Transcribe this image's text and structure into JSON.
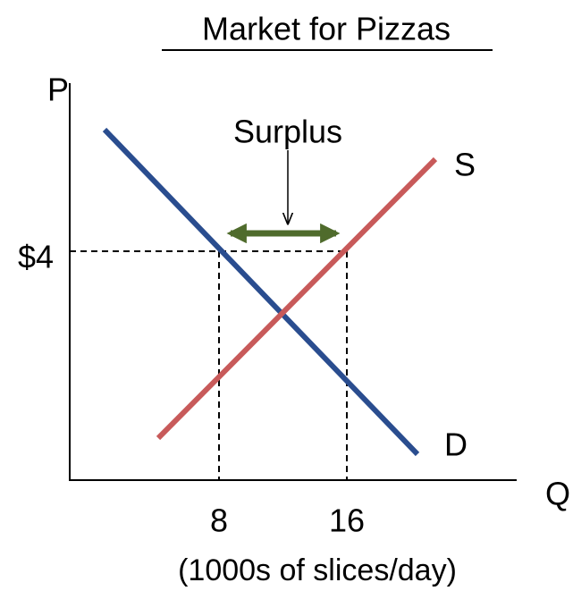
{
  "title": "Market for Pizzas",
  "y_axis_label": "P",
  "x_axis_label": "Q",
  "supply_label": "S",
  "demand_label": "D",
  "annotation": "Surplus",
  "price_label": "$4",
  "quantity_labels": [
    "8",
    "16"
  ],
  "x_axis_caption": "(1000s of slices/day)"
}
